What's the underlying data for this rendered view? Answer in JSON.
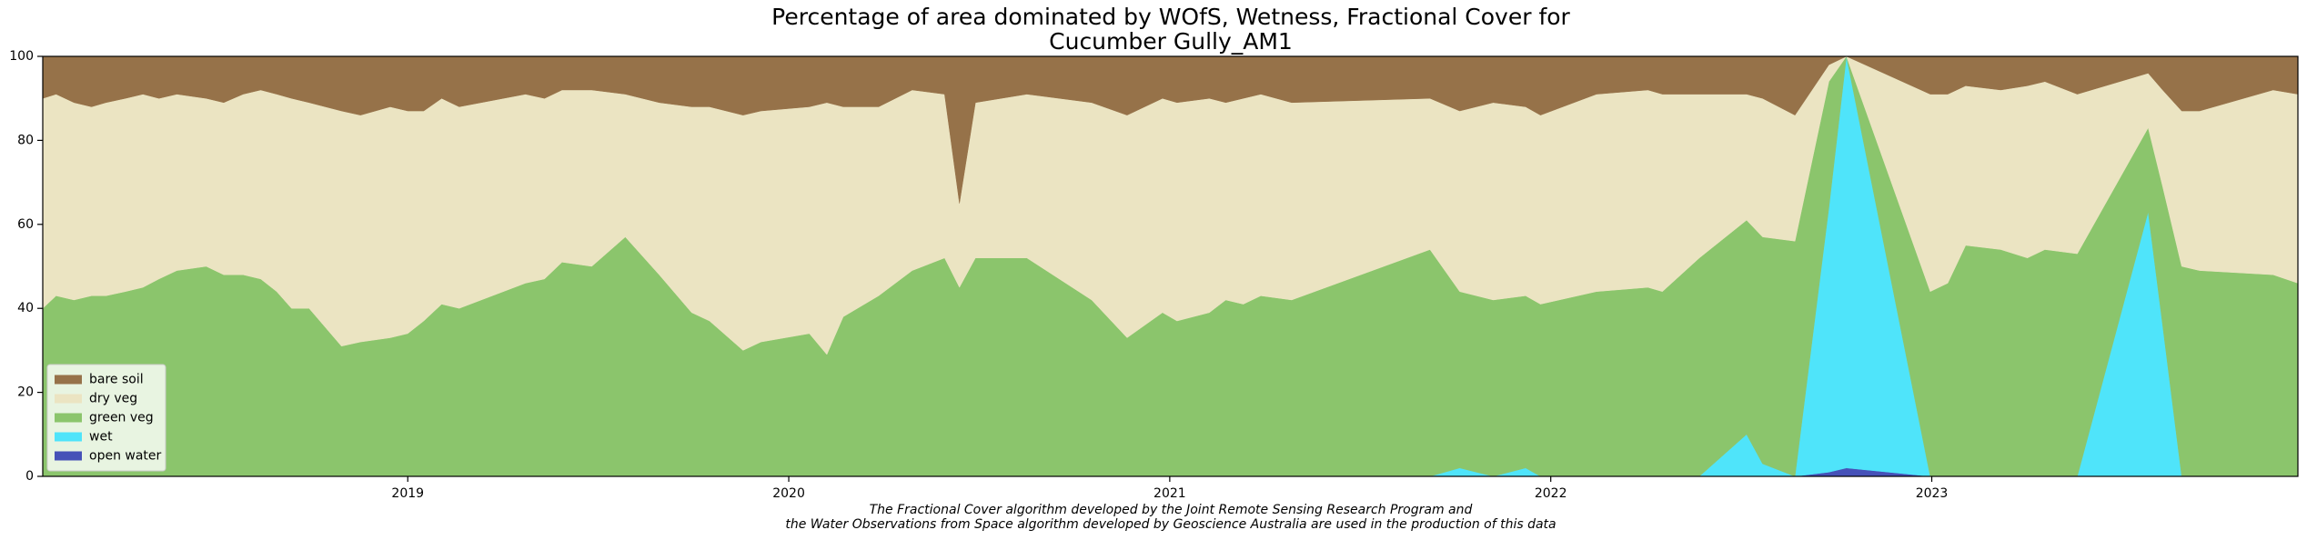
{
  "chart_data": {
    "type": "stacked_area",
    "title": [
      "Percentage of area dominated by WOfS, Wetness, Fractional Cover for",
      "Cucumber Gully_AM1"
    ],
    "annotation": [
      "The Fractional Cover algorithm developed by the Joint Remote Sensing Research Program and",
      "the Water Observations from Space algorithm developed by Geoscience Australia are used in the production of this data"
    ],
    "x": [
      2018.042,
      2018.077,
      2018.124,
      2018.17,
      2018.208,
      2018.259,
      2018.305,
      2018.347,
      2018.394,
      2018.471,
      2018.517,
      2018.568,
      2018.614,
      2018.656,
      2018.695,
      2018.741,
      2018.826,
      2018.876,
      2018.954,
      2019.0,
      2019.042,
      2019.089,
      2019.135,
      2019.309,
      2019.359,
      2019.405,
      2019.483,
      2019.571,
      2019.66,
      2019.745,
      2019.792,
      2019.88,
      2019.927,
      2020.054,
      2020.1,
      2020.143,
      2020.236,
      2020.324,
      2020.409,
      2020.448,
      2020.49,
      2020.625,
      2020.795,
      2020.888,
      2020.981,
      2021.019,
      2021.104,
      2021.147,
      2021.193,
      2021.239,
      2021.32,
      2021.683,
      2021.761,
      2021.849,
      2021.934,
      2021.973,
      2022.12,
      2022.255,
      2022.293,
      2022.39,
      2022.514,
      2022.556,
      2022.641,
      2022.73,
      2022.776,
      2022.996,
      2023.042,
      2023.089,
      2023.181,
      2023.251,
      2023.297,
      2023.382,
      2023.568,
      2023.606,
      2023.656,
      2023.703,
      2023.896,
      2023.961
    ],
    "series": [
      {
        "name": "bare soil",
        "color": "#967249",
        "values": [
          10,
          9,
          11,
          12,
          11,
          10,
          9,
          10,
          9,
          10,
          11,
          9,
          8,
          9,
          10,
          11,
          13,
          14,
          12,
          13,
          13,
          10,
          12,
          9,
          10,
          8,
          8,
          9,
          11,
          12,
          12,
          14,
          13,
          12,
          11,
          12,
          12,
          8,
          9,
          35,
          11,
          9,
          11,
          14,
          10,
          11,
          10,
          11,
          10,
          9,
          11,
          10,
          13,
          11,
          12,
          14,
          9,
          8,
          9,
          9,
          9,
          10,
          14,
          2,
          0,
          9,
          9,
          7,
          8,
          7,
          6,
          9,
          4,
          8,
          13,
          13,
          8,
          9
        ]
      },
      {
        "name": "dry veg",
        "color": "#ebe4c2",
        "values": [
          50,
          48,
          47,
          45,
          46,
          46,
          46,
          43,
          42,
          40,
          41,
          43,
          45,
          47,
          50,
          49,
          56,
          54,
          55,
          53,
          50,
          49,
          48,
          45,
          43,
          41,
          42,
          34,
          41,
          49,
          51,
          56,
          55,
          54,
          60,
          50,
          45,
          43,
          39,
          20,
          37,
          39,
          47,
          53,
          51,
          52,
          51,
          47,
          49,
          48,
          47,
          36,
          43,
          47,
          45,
          45,
          47,
          47,
          47,
          39,
          30,
          33,
          30,
          4,
          0,
          47,
          45,
          38,
          38,
          41,
          40,
          38,
          13,
          23,
          37,
          38,
          44,
          45
        ]
      },
      {
        "name": "green veg",
        "color": "#8bc56c",
        "values": [
          40,
          43,
          42,
          43,
          43,
          44,
          45,
          47,
          49,
          50,
          48,
          48,
          47,
          44,
          40,
          40,
          31,
          32,
          33,
          34,
          37,
          41,
          40,
          46,
          47,
          51,
          50,
          57,
          48,
          39,
          37,
          30,
          32,
          34,
          29,
          38,
          43,
          49,
          52,
          45,
          52,
          52,
          42,
          33,
          39,
          37,
          39,
          42,
          41,
          43,
          42,
          54,
          42,
          42,
          41,
          41,
          44,
          45,
          44,
          52,
          51,
          54,
          56,
          30,
          0,
          44,
          46,
          55,
          54,
          52,
          54,
          53,
          20,
          33,
          50,
          49,
          48,
          46
        ]
      },
      {
        "name": "wet",
        "color": "#4fe4fa",
        "values": [
          0,
          0,
          0,
          0,
          0,
          0,
          0,
          0,
          0,
          0,
          0,
          0,
          0,
          0,
          0,
          0,
          0,
          0,
          0,
          0,
          0,
          0,
          0,
          0,
          0,
          0,
          0,
          0,
          0,
          0,
          0,
          0,
          0,
          0,
          0,
          0,
          0,
          0,
          0,
          0,
          0,
          0,
          0,
          0,
          0,
          0,
          0,
          0,
          0,
          0,
          0,
          0,
          2,
          0,
          2,
          0,
          0,
          0,
          0,
          0,
          10,
          3,
          0,
          63,
          98,
          0,
          0,
          0,
          0,
          0,
          0,
          0,
          63,
          36,
          0,
          0,
          0,
          0
        ]
      },
      {
        "name": "open water",
        "color": "#4651b8",
        "values": [
          0,
          0,
          0,
          0,
          0,
          0,
          0,
          0,
          0,
          0,
          0,
          0,
          0,
          0,
          0,
          0,
          0,
          0,
          0,
          0,
          0,
          0,
          0,
          0,
          0,
          0,
          0,
          0,
          0,
          0,
          0,
          0,
          0,
          0,
          0,
          0,
          0,
          0,
          0,
          0,
          0,
          0,
          0,
          0,
          0,
          0,
          0,
          0,
          0,
          0,
          0,
          0,
          0,
          0,
          0,
          0,
          0,
          0,
          0,
          0,
          0,
          0,
          0,
          1,
          2,
          0,
          0,
          0,
          0,
          0,
          0,
          0,
          0,
          0,
          0,
          0,
          0,
          0
        ]
      }
    ],
    "xlim": [
      2018.042,
      2023.961
    ],
    "xticks": [
      2019,
      2020,
      2021,
      2022,
      2023
    ],
    "ylim": [
      0,
      100
    ],
    "yticks": [
      0,
      20,
      40,
      60,
      80,
      100
    ],
    "grid": false,
    "legend": "lower left"
  }
}
